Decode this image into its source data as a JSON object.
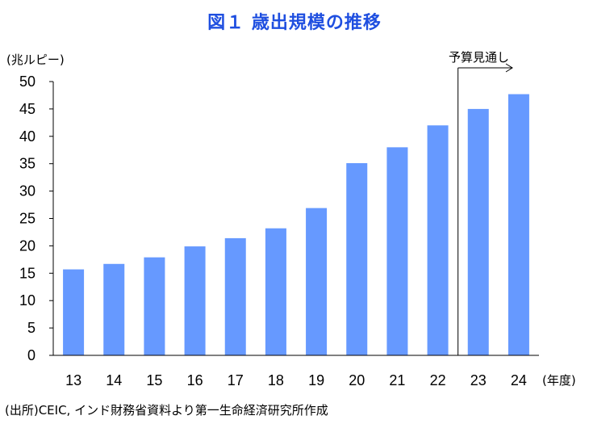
{
  "title": "図１ 歳出規模の推移",
  "unit_label": "(兆ルピー)",
  "x_unit_label": "(年度)",
  "forecast_label": "予算見通し",
  "source": "(出所)CEIC, インド財務省資料より第一生命経済研究所作成",
  "colors": {
    "bar": "#6699FF",
    "title": "#1F4FE0"
  },
  "chart_data": {
    "type": "bar",
    "title": "図１ 歳出規模の推移",
    "xlabel": "(年度)",
    "ylabel": "(兆ルピー)",
    "categories": [
      "13",
      "14",
      "15",
      "16",
      "17",
      "18",
      "19",
      "20",
      "21",
      "22",
      "23",
      "24"
    ],
    "values": [
      15.7,
      16.7,
      17.9,
      19.9,
      21.4,
      23.2,
      26.9,
      35.1,
      38.0,
      42.0,
      45.0,
      47.7
    ],
    "ylim": [
      0,
      50
    ],
    "yticks": [
      0,
      5,
      10,
      15,
      20,
      25,
      30,
      35,
      40,
      45,
      50
    ],
    "grid": false,
    "annotations": [
      {
        "text": "予算見通し",
        "from_category": "23"
      }
    ]
  }
}
